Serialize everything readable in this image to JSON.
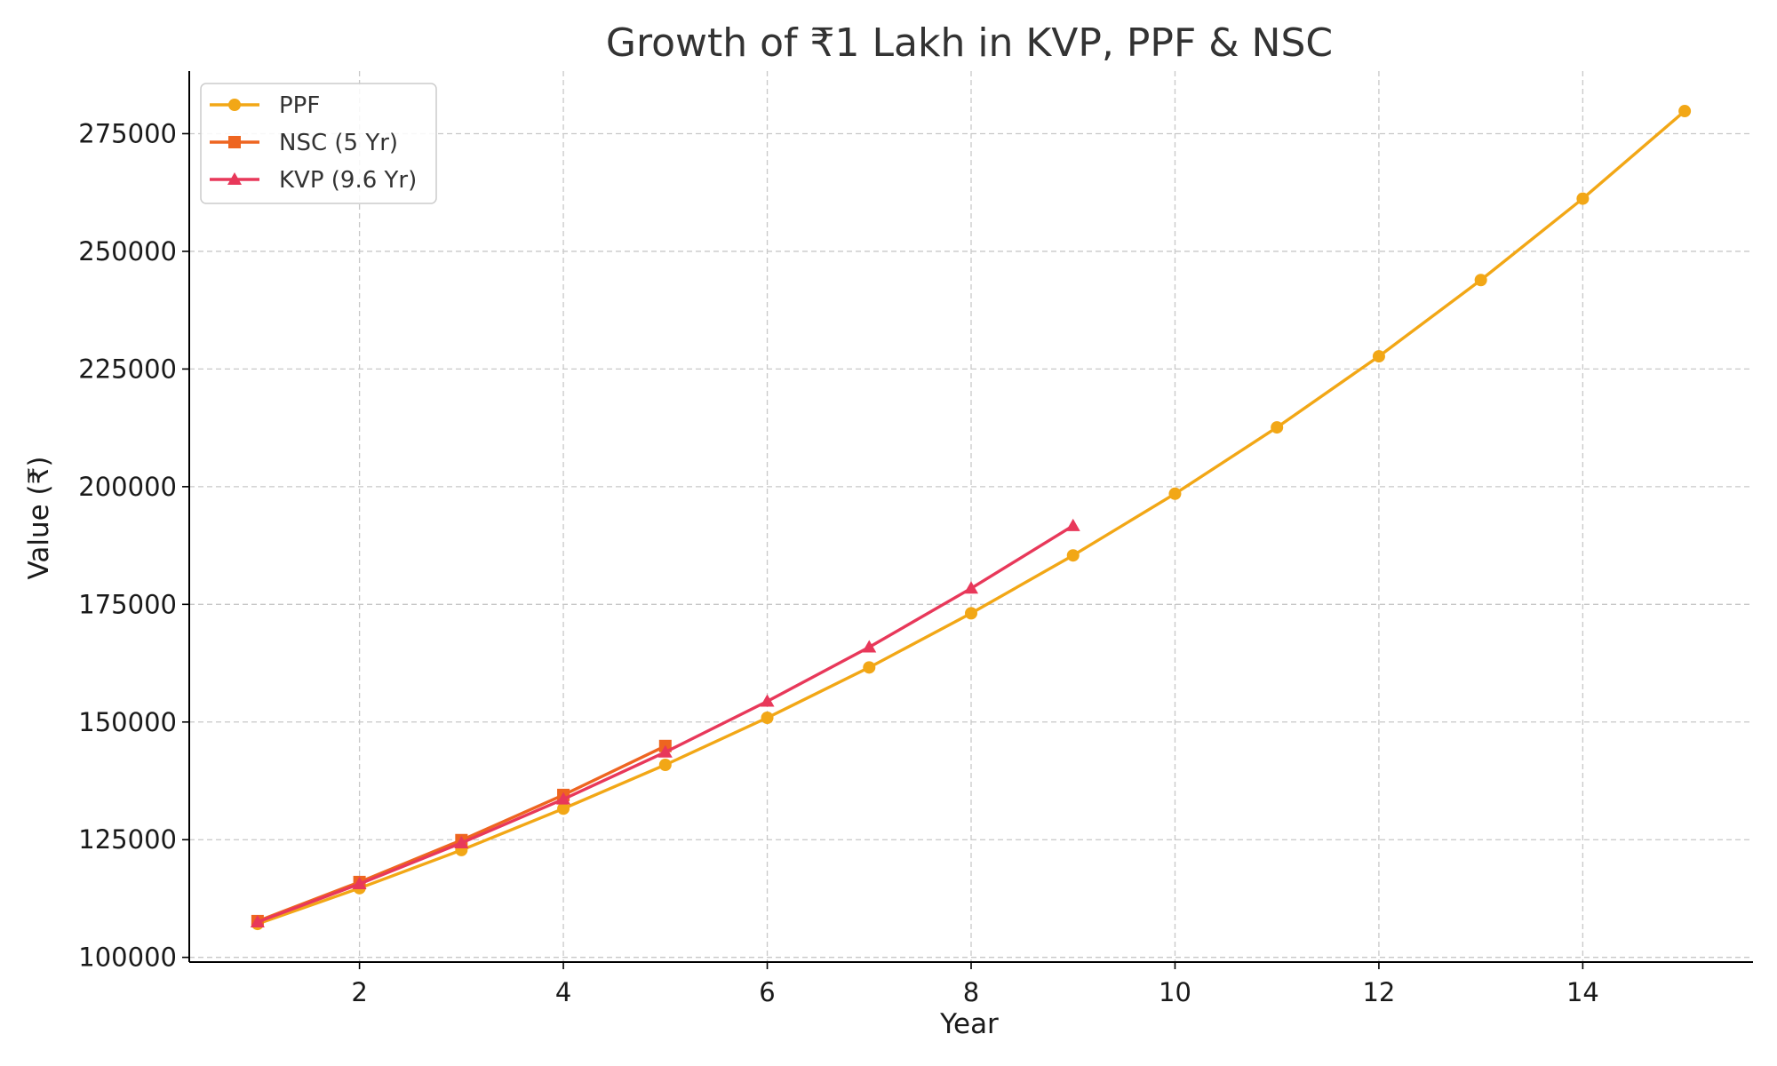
{
  "chart_data": {
    "type": "line",
    "title": "Growth of ₹1 Lakh in KVP, PPF & NSC",
    "xlabel": "Year",
    "ylabel": "Value (₹)",
    "xlim": [
      0.33,
      15.67
    ],
    "ylim": [
      99000,
      288300
    ],
    "xticks": [
      2,
      4,
      6,
      8,
      10,
      12,
      14
    ],
    "yticks": [
      100000,
      125000,
      150000,
      175000,
      200000,
      225000,
      250000,
      275000
    ],
    "grid": true,
    "legend_position": "top-left",
    "series": [
      {
        "name": "PPF",
        "color": "#f2a716",
        "marker": "circle",
        "x": [
          1,
          2,
          3,
          4,
          5,
          6,
          7,
          8,
          9,
          10,
          11,
          12,
          13,
          14,
          15
        ],
        "values": [
          107100,
          114700,
          122800,
          131600,
          140900,
          150900,
          161600,
          173100,
          185400,
          198500,
          212600,
          227700,
          243900,
          261200,
          279800
        ]
      },
      {
        "name": "NSC (5 Yr)",
        "color": "#ee6520",
        "marker": "square",
        "x": [
          1,
          2,
          3,
          4,
          5
        ],
        "values": [
          107700,
          116000,
          124900,
          134500,
          144900
        ]
      },
      {
        "name": "KVP (9.6 Yr)",
        "color": "#e8385a",
        "marker": "triangle",
        "x": [
          1,
          2,
          3,
          4,
          5,
          6,
          7,
          8,
          9
        ],
        "values": [
          107500,
          115600,
          124300,
          133600,
          143600,
          154400,
          165900,
          178400,
          191700
        ]
      }
    ]
  }
}
